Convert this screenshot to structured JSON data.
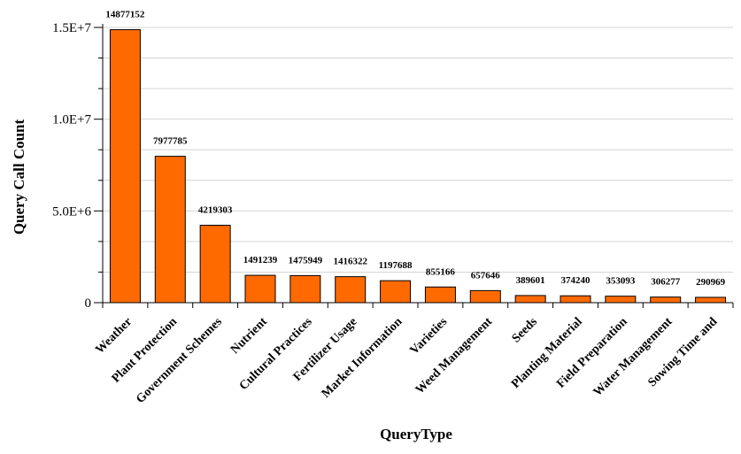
{
  "chart_data": {
    "type": "bar",
    "title": "",
    "xlabel": "QueryType",
    "ylabel": "Query Call Count",
    "ylim": [
      0,
      15000000
    ],
    "yticks": [
      0,
      5000000,
      10000000,
      15000000
    ],
    "ytick_labels": [
      "0",
      "5.0E+6",
      "1.0E+7",
      "1.5E+7"
    ],
    "grid": true,
    "bar_color": "#ff6a00",
    "categories": [
      "Weather",
      "Plant Protection",
      "Government Schemes",
      "Nutrient",
      "Cultural Practices",
      "Fertilizer Usage",
      "Market Information",
      "Varieties",
      "Weed Management",
      "Seeds",
      "Planting Material",
      "Field Preparation",
      "Water Management",
      "Sowing Time and"
    ],
    "values": [
      14877152,
      7977785,
      4219303,
      1491239,
      1475949,
      1416322,
      1197688,
      855166,
      657646,
      389601,
      374240,
      353093,
      306277,
      290969
    ]
  }
}
